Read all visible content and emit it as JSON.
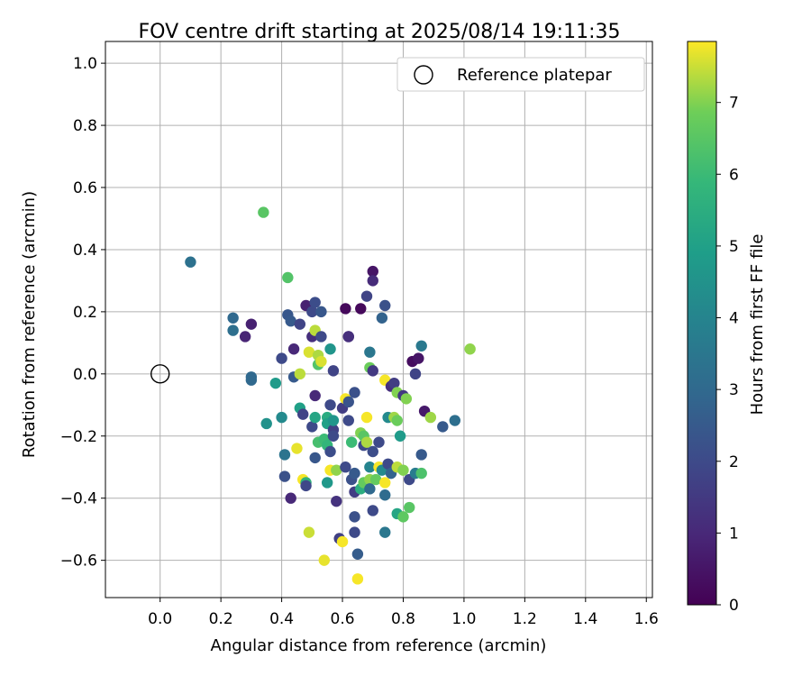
{
  "chart_data": {
    "type": "scatter",
    "title": "FOV centre drift starting at 2025/08/14 19:11:35",
    "xlabel": "Angular distance from reference (arcmin)",
    "ylabel": "Rotation from reference (arcmin)",
    "xlim": [
      -0.18,
      1.62
    ],
    "ylim": [
      -0.72,
      1.07
    ],
    "xticks": [
      "0.0",
      "0.2",
      "0.4",
      "0.6",
      "0.8",
      "1.0",
      "1.2",
      "1.4",
      "1.6"
    ],
    "yticks": [
      "−0.6",
      "−0.4",
      "−0.2",
      "0.0",
      "0.2",
      "0.4",
      "0.6",
      "0.8",
      "1.0"
    ],
    "grid": true,
    "legend": {
      "position": "top-right",
      "entries": [
        {
          "label": "Reference platepar",
          "marker": "open-circle"
        }
      ]
    },
    "reference_point": {
      "x": 0.0,
      "y": 0.0
    },
    "colorbar": {
      "label": "Hours from first FF file",
      "ticks": [
        "0",
        "1",
        "2",
        "3",
        "4",
        "5",
        "6",
        "7"
      ],
      "range": [
        0,
        7.85
      ],
      "colormap": "viridis"
    },
    "points": [
      {
        "x": 0.1,
        "y": 0.36,
        "c": 3.3
      },
      {
        "x": 0.34,
        "y": 0.52,
        "c": 6.5
      },
      {
        "x": 0.42,
        "y": 0.31,
        "c": 6.4
      },
      {
        "x": 0.24,
        "y": 0.18,
        "c": 3.0
      },
      {
        "x": 0.24,
        "y": 0.14,
        "c": 3.2
      },
      {
        "x": 0.28,
        "y": 0.12,
        "c": 0.9
      },
      {
        "x": 0.3,
        "y": 0.16,
        "c": 0.8
      },
      {
        "x": 0.3,
        "y": -0.01,
        "c": 3.0
      },
      {
        "x": 0.3,
        "y": -0.02,
        "c": 3.0
      },
      {
        "x": 0.35,
        "y": -0.16,
        "c": 4.5
      },
      {
        "x": 0.38,
        "y": -0.03,
        "c": 4.8
      },
      {
        "x": 0.4,
        "y": 0.05,
        "c": 2.0
      },
      {
        "x": 0.4,
        "y": -0.14,
        "c": 4.2
      },
      {
        "x": 0.41,
        "y": -0.26,
        "c": 3.4
      },
      {
        "x": 0.41,
        "y": -0.33,
        "c": 2.2
      },
      {
        "x": 0.42,
        "y": 0.19,
        "c": 2.4
      },
      {
        "x": 0.43,
        "y": 0.17,
        "c": 2.5
      },
      {
        "x": 0.43,
        "y": -0.4,
        "c": 1.0
      },
      {
        "x": 0.44,
        "y": 0.08,
        "c": 1.0
      },
      {
        "x": 0.44,
        "y": -0.01,
        "c": 2.5
      },
      {
        "x": 0.45,
        "y": -0.24,
        "c": 7.7
      },
      {
        "x": 0.46,
        "y": 0.0,
        "c": 7.4
      },
      {
        "x": 0.46,
        "y": 0.16,
        "c": 1.8
      },
      {
        "x": 0.46,
        "y": -0.11,
        "c": 5.0
      },
      {
        "x": 0.47,
        "y": -0.34,
        "c": 7.8
      },
      {
        "x": 0.47,
        "y": -0.13,
        "c": 1.8
      },
      {
        "x": 0.48,
        "y": 0.22,
        "c": 0.8
      },
      {
        "x": 0.48,
        "y": -0.35,
        "c": 5.6
      },
      {
        "x": 0.48,
        "y": -0.36,
        "c": 1.9
      },
      {
        "x": 0.49,
        "y": 0.07,
        "c": 7.6
      },
      {
        "x": 0.49,
        "y": -0.51,
        "c": 7.5
      },
      {
        "x": 0.5,
        "y": 0.2,
        "c": 2.0
      },
      {
        "x": 0.5,
        "y": 0.12,
        "c": 1.2
      },
      {
        "x": 0.5,
        "y": -0.17,
        "c": 2.0
      },
      {
        "x": 0.51,
        "y": 0.23,
        "c": 2.1
      },
      {
        "x": 0.51,
        "y": 0.14,
        "c": 7.4
      },
      {
        "x": 0.51,
        "y": -0.07,
        "c": 1.0
      },
      {
        "x": 0.51,
        "y": -0.27,
        "c": 2.4
      },
      {
        "x": 0.51,
        "y": -0.14,
        "c": 5.2
      },
      {
        "x": 0.52,
        "y": 0.03,
        "c": 6.4
      },
      {
        "x": 0.52,
        "y": 0.06,
        "c": 7.3
      },
      {
        "x": 0.52,
        "y": -0.22,
        "c": 6.2
      },
      {
        "x": 0.53,
        "y": 0.2,
        "c": 2.4
      },
      {
        "x": 0.53,
        "y": 0.12,
        "c": 2.0
      },
      {
        "x": 0.53,
        "y": 0.04,
        "c": 7.6
      },
      {
        "x": 0.54,
        "y": -0.21,
        "c": 6.0
      },
      {
        "x": 0.54,
        "y": -0.6,
        "c": 7.7
      },
      {
        "x": 0.55,
        "y": -0.14,
        "c": 5.4
      },
      {
        "x": 0.55,
        "y": -0.16,
        "c": 5.0
      },
      {
        "x": 0.55,
        "y": -0.23,
        "c": 5.8
      },
      {
        "x": 0.55,
        "y": -0.35,
        "c": 4.7
      },
      {
        "x": 0.56,
        "y": -0.1,
        "c": 2.0
      },
      {
        "x": 0.56,
        "y": 0.08,
        "c": 4.6
      },
      {
        "x": 0.56,
        "y": -0.25,
        "c": 2.1
      },
      {
        "x": 0.56,
        "y": -0.31,
        "c": 7.8
      },
      {
        "x": 0.57,
        "y": 0.01,
        "c": 1.8
      },
      {
        "x": 0.57,
        "y": -0.18,
        "c": 1.7
      },
      {
        "x": 0.57,
        "y": -0.2,
        "c": 2.0
      },
      {
        "x": 0.57,
        "y": -0.15,
        "c": 4.6
      },
      {
        "x": 0.58,
        "y": -0.41,
        "c": 1.3
      },
      {
        "x": 0.58,
        "y": -0.31,
        "c": 7.1
      },
      {
        "x": 0.59,
        "y": -0.53,
        "c": 1.7
      },
      {
        "x": 0.6,
        "y": -0.11,
        "c": 1.6
      },
      {
        "x": 0.6,
        "y": -0.54,
        "c": 7.8
      },
      {
        "x": 0.61,
        "y": 0.21,
        "c": 0.2
      },
      {
        "x": 0.61,
        "y": -0.08,
        "c": 7.8
      },
      {
        "x": 0.61,
        "y": -0.3,
        "c": 2.0
      },
      {
        "x": 0.62,
        "y": 0.12,
        "c": 1.2
      },
      {
        "x": 0.62,
        "y": 0.12,
        "c": 1.2
      },
      {
        "x": 0.62,
        "y": -0.09,
        "c": 2.3
      },
      {
        "x": 0.62,
        "y": -0.15,
        "c": 2.0
      },
      {
        "x": 0.63,
        "y": -0.22,
        "c": 6.0
      },
      {
        "x": 0.63,
        "y": -0.34,
        "c": 2.2
      },
      {
        "x": 0.64,
        "y": -0.06,
        "c": 2.2
      },
      {
        "x": 0.64,
        "y": -0.32,
        "c": 2.5
      },
      {
        "x": 0.64,
        "y": -0.38,
        "c": 1.6
      },
      {
        "x": 0.64,
        "y": -0.46,
        "c": 2.2
      },
      {
        "x": 0.64,
        "y": -0.51,
        "c": 2.0
      },
      {
        "x": 0.65,
        "y": -0.58,
        "c": 2.6
      },
      {
        "x": 0.65,
        "y": -0.66,
        "c": 7.8
      },
      {
        "x": 0.66,
        "y": 0.21,
        "c": 0.2
      },
      {
        "x": 0.66,
        "y": -0.19,
        "c": 7.0
      },
      {
        "x": 0.66,
        "y": -0.37,
        "c": 5.5
      },
      {
        "x": 0.67,
        "y": -0.23,
        "c": 2.0
      },
      {
        "x": 0.67,
        "y": -0.2,
        "c": 6.5
      },
      {
        "x": 0.67,
        "y": -0.35,
        "c": 6.7
      },
      {
        "x": 0.68,
        "y": 0.25,
        "c": 1.8
      },
      {
        "x": 0.68,
        "y": -0.14,
        "c": 7.8
      },
      {
        "x": 0.68,
        "y": -0.22,
        "c": 7.3
      },
      {
        "x": 0.69,
        "y": 0.07,
        "c": 3.5
      },
      {
        "x": 0.69,
        "y": 0.02,
        "c": 6.8
      },
      {
        "x": 0.69,
        "y": -0.34,
        "c": 7.1
      },
      {
        "x": 0.69,
        "y": -0.3,
        "c": 4.0
      },
      {
        "x": 0.69,
        "y": -0.37,
        "c": 3.0
      },
      {
        "x": 0.7,
        "y": 0.33,
        "c": 0.5
      },
      {
        "x": 0.7,
        "y": 0.3,
        "c": 1.1
      },
      {
        "x": 0.7,
        "y": 0.01,
        "c": 1.5
      },
      {
        "x": 0.7,
        "y": -0.25,
        "c": 2.1
      },
      {
        "x": 0.7,
        "y": -0.44,
        "c": 2.0
      },
      {
        "x": 0.71,
        "y": -0.34,
        "c": 6.7
      },
      {
        "x": 0.72,
        "y": -0.22,
        "c": 2.0
      },
      {
        "x": 0.72,
        "y": -0.3,
        "c": 7.8
      },
      {
        "x": 0.73,
        "y": 0.18,
        "c": 2.8
      },
      {
        "x": 0.73,
        "y": -0.31,
        "c": 4.2
      },
      {
        "x": 0.74,
        "y": 0.22,
        "c": 2.2
      },
      {
        "x": 0.74,
        "y": -0.02,
        "c": 7.8
      },
      {
        "x": 0.74,
        "y": -0.35,
        "c": 7.8
      },
      {
        "x": 0.74,
        "y": -0.39,
        "c": 3.1
      },
      {
        "x": 0.74,
        "y": -0.51,
        "c": 3.5
      },
      {
        "x": 0.75,
        "y": -0.29,
        "c": 2.0
      },
      {
        "x": 0.75,
        "y": -0.14,
        "c": 4.2
      },
      {
        "x": 0.76,
        "y": -0.32,
        "c": 2.8
      },
      {
        "x": 0.76,
        "y": -0.04,
        "c": 1.2
      },
      {
        "x": 0.77,
        "y": -0.03,
        "c": 1.6
      },
      {
        "x": 0.77,
        "y": -0.14,
        "c": 7.2
      },
      {
        "x": 0.78,
        "y": -0.15,
        "c": 6.8
      },
      {
        "x": 0.78,
        "y": -0.06,
        "c": 7.0
      },
      {
        "x": 0.78,
        "y": -0.45,
        "c": 5.2
      },
      {
        "x": 0.78,
        "y": -0.3,
        "c": 7.4
      },
      {
        "x": 0.79,
        "y": -0.2,
        "c": 4.8
      },
      {
        "x": 0.8,
        "y": -0.31,
        "c": 7.0
      },
      {
        "x": 0.8,
        "y": -0.46,
        "c": 6.6
      },
      {
        "x": 0.8,
        "y": -0.07,
        "c": 1.5
      },
      {
        "x": 0.81,
        "y": -0.08,
        "c": 7.0
      },
      {
        "x": 0.82,
        "y": -0.43,
        "c": 6.5
      },
      {
        "x": 0.82,
        "y": -0.34,
        "c": 2.0
      },
      {
        "x": 0.83,
        "y": 0.04,
        "c": 0.3
      },
      {
        "x": 0.84,
        "y": 0.0,
        "c": 1.8
      },
      {
        "x": 0.84,
        "y": -0.32,
        "c": 3.7
      },
      {
        "x": 0.85,
        "y": 0.05,
        "c": 0.5
      },
      {
        "x": 0.86,
        "y": 0.09,
        "c": 3.6
      },
      {
        "x": 0.86,
        "y": -0.26,
        "c": 2.5
      },
      {
        "x": 0.86,
        "y": -0.32,
        "c": 6.3
      },
      {
        "x": 0.87,
        "y": -0.12,
        "c": 0.6
      },
      {
        "x": 0.89,
        "y": -0.14,
        "c": 7.2
      },
      {
        "x": 0.93,
        "y": -0.17,
        "c": 2.5
      },
      {
        "x": 0.97,
        "y": -0.15,
        "c": 3.2
      },
      {
        "x": 1.02,
        "y": 0.08,
        "c": 7.1
      }
    ]
  }
}
